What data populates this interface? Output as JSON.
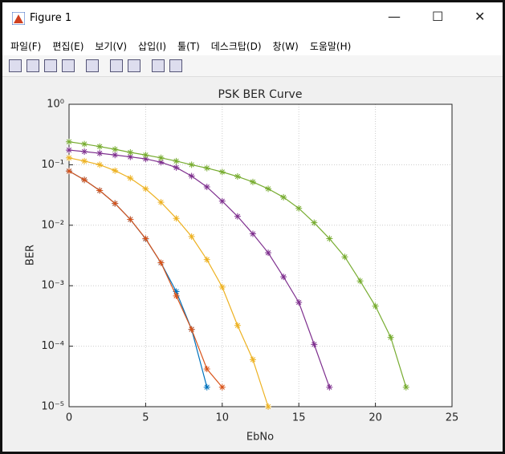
{
  "window": {
    "title": "Figure 1",
    "menu": [
      "파일(F)",
      "편집(E)",
      "보기(V)",
      "삽입(I)",
      "툴(T)",
      "데스크탑(D)",
      "창(W)",
      "도움말(H)"
    ]
  },
  "chart_data": {
    "type": "line",
    "title": "PSK BER Curve",
    "x_label": "EbNo",
    "y_label": "BER",
    "xlim": [
      0,
      25
    ],
    "xticks": [
      0,
      5,
      10,
      15,
      20,
      25
    ],
    "ylim": [
      1e-05,
      1
    ],
    "log_y": true,
    "grid": true,
    "yticks": [
      {
        "value": 1e-05,
        "label": "10⁻⁵"
      },
      {
        "value": 0.0001,
        "label": "10⁻⁴"
      },
      {
        "value": 0.001,
        "label": "10⁻³"
      },
      {
        "value": 0.01,
        "label": "10⁻²"
      },
      {
        "value": 0.1,
        "label": "10⁻¹"
      },
      {
        "value": 1,
        "label": "10⁰"
      }
    ],
    "series": [
      {
        "color": "#0072BD",
        "x": [
          0,
          1,
          2,
          3,
          4,
          5,
          6,
          7,
          8,
          9
        ],
        "values": [
          0.0786,
          0.0563,
          0.0375,
          0.0229,
          0.0125,
          0.00595,
          0.00239,
          0.0008,
          0.00019,
          2.1e-05
        ]
      },
      {
        "color": "#D95319",
        "x": [
          0,
          1,
          2,
          3,
          4,
          5,
          6,
          7,
          8,
          9,
          10
        ],
        "values": [
          0.0786,
          0.0563,
          0.0375,
          0.0229,
          0.0125,
          0.006,
          0.0024,
          0.00068,
          0.00019,
          4.2e-05,
          2.1e-05
        ]
      },
      {
        "color": "#EDB120",
        "x": [
          0,
          1,
          2,
          3,
          4,
          5,
          6,
          7,
          8,
          9,
          10,
          11,
          12,
          13
        ],
        "values": [
          0.13,
          0.115,
          0.1,
          0.08,
          0.06,
          0.04,
          0.024,
          0.013,
          0.0065,
          0.0027,
          0.00095,
          0.00022,
          6e-05,
          1e-05
        ]
      },
      {
        "color": "#7E2F8E",
        "x": [
          0,
          1,
          2,
          3,
          4,
          5,
          6,
          7,
          8,
          9,
          10,
          11,
          12,
          13,
          14,
          15,
          16,
          17
        ],
        "values": [
          0.175,
          0.165,
          0.155,
          0.145,
          0.135,
          0.125,
          0.11,
          0.09,
          0.065,
          0.043,
          0.025,
          0.014,
          0.0072,
          0.0035,
          0.0014,
          0.00053,
          0.000107,
          2.1e-05
        ]
      },
      {
        "color": "#77AC30",
        "x": [
          0,
          1,
          2,
          3,
          4,
          5,
          6,
          7,
          8,
          9,
          10,
          11,
          12,
          13,
          14,
          15,
          16,
          17,
          18,
          19,
          20,
          21,
          22
        ],
        "values": [
          0.24,
          0.22,
          0.2,
          0.18,
          0.16,
          0.145,
          0.13,
          0.115,
          0.1,
          0.088,
          0.076,
          0.064,
          0.052,
          0.04,
          0.029,
          0.019,
          0.011,
          0.006,
          0.003,
          0.0012,
          0.00046,
          0.00014,
          2.1e-05
        ]
      }
    ]
  }
}
